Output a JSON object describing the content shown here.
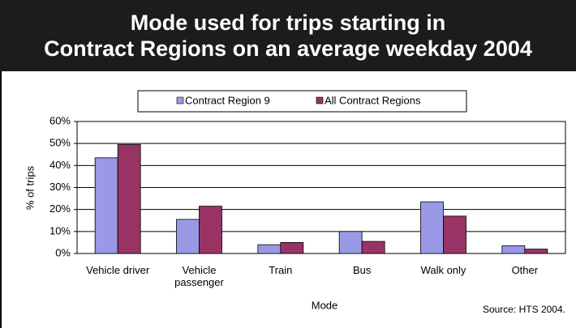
{
  "chart_data": {
    "type": "bar",
    "title": [
      "Mode used for trips starting in",
      "Contract Regions on an average weekday 2004"
    ],
    "x_label": "Mode",
    "y_label": "% of trips",
    "source": "Source: HTS 2004.",
    "categories": [
      "Vehicle driver",
      "Vehicle passenger",
      "Train",
      "Bus",
      "Walk only",
      "Other"
    ],
    "series": [
      {
        "name": "Contract Region 9",
        "color": "#9999e6",
        "values": [
          43.5,
          15.5,
          4,
          10,
          23.5,
          3.5
        ]
      },
      {
        "name": "All Contract Regions",
        "color": "#993366",
        "values": [
          49.5,
          21.5,
          5,
          5.5,
          17,
          2
        ]
      }
    ],
    "ylim": [
      0,
      60
    ],
    "yticks": [
      {
        "value": 0,
        "label": "0%"
      },
      {
        "value": 10,
        "label": "10%"
      },
      {
        "value": 20,
        "label": "20%"
      },
      {
        "value": 30,
        "label": "30%"
      },
      {
        "value": 40,
        "label": "40%"
      },
      {
        "value": 50,
        "label": "50%"
      },
      {
        "value": 60,
        "label": "60%"
      }
    ],
    "grid": true,
    "legend": "top"
  }
}
